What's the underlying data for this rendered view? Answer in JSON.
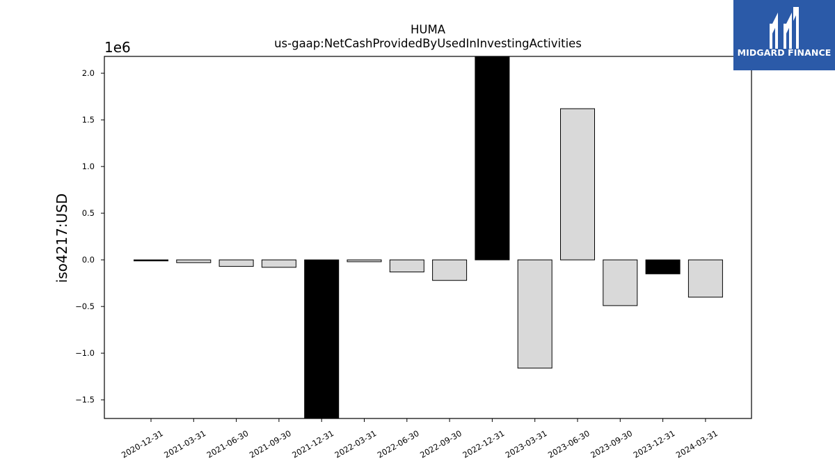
{
  "chart_data": {
    "type": "bar",
    "title": "HUMA",
    "subtitle": "us-gaap:NetCashProvidedByUsedInInvestingActivities",
    "ylabel": "iso4217:USD",
    "xlabel": "",
    "y_multiplier_label": "1e6",
    "ylim": [
      -1.7,
      2.18
    ],
    "yticks": [
      -1.5,
      -1.0,
      -0.5,
      0.0,
      0.5,
      1.0,
      1.5,
      2.0
    ],
    "ytick_labels": [
      "−1.5",
      "−1.0",
      "−0.5",
      "0.0",
      "0.5",
      "1.0",
      "1.5",
      "2.0"
    ],
    "grid": false,
    "categories": [
      "2020-12-31",
      "2021-03-31",
      "2021-06-30",
      "2021-09-30",
      "2021-12-31",
      "2022-03-31",
      "2022-06-30",
      "2022-09-30",
      "2022-12-31",
      "2023-03-31",
      "2023-06-30",
      "2023-09-30",
      "2023-12-31",
      "2024-03-31"
    ],
    "values": [
      -0.01,
      -0.03,
      -0.07,
      -0.08,
      -1.7,
      -0.02,
      -0.13,
      -0.22,
      2.18,
      -1.16,
      1.62,
      -0.49,
      -0.15,
      -0.4
    ],
    "bar_colors": [
      "#000000",
      "#d9d9d9",
      "#d9d9d9",
      "#d9d9d9",
      "#000000",
      "#d9d9d9",
      "#d9d9d9",
      "#d9d9d9",
      "#000000",
      "#d9d9d9",
      "#d9d9d9",
      "#d9d9d9",
      "#000000",
      "#d9d9d9"
    ]
  },
  "logo": {
    "text": "MIDGARD FINANCE",
    "background": "#2b5aa8"
  }
}
